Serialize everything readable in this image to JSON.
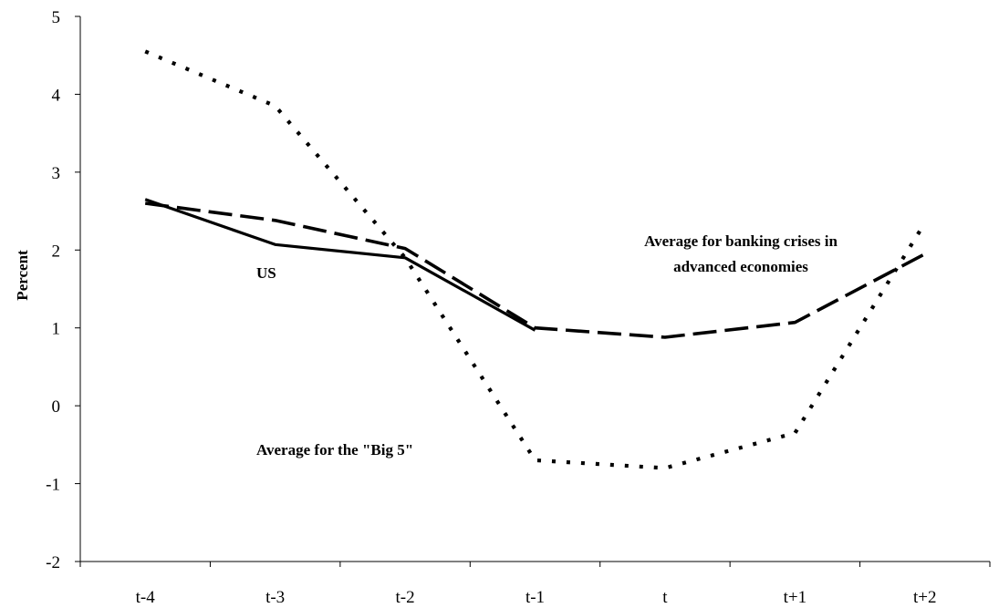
{
  "chart_data": {
    "type": "line",
    "title": "",
    "xlabel": "",
    "ylabel": "Percent",
    "ylim": [
      -2,
      5
    ],
    "yticks": [
      -2,
      -1,
      0,
      1,
      2,
      3,
      4,
      5
    ],
    "ytick_labels": [
      "-2",
      "-1",
      "0",
      "1",
      "2",
      "3",
      "4",
      "5"
    ],
    "categories": [
      "t-4",
      "t-3",
      "t-2",
      "t-1",
      "t",
      "t+1",
      "t+2"
    ],
    "grid": false,
    "legend": "none",
    "series": [
      {
        "name": "US",
        "style": "solid",
        "values": [
          2.65,
          2.07,
          1.9,
          0.97,
          null,
          null,
          null
        ]
      },
      {
        "name": "Average for banking crises in advanced economies",
        "style": "dashed",
        "values": [
          2.6,
          2.38,
          2.02,
          1.0,
          0.88,
          1.07,
          1.95
        ]
      },
      {
        "name": "Average for the \"Big 5\"",
        "style": "dotted",
        "values": [
          4.55,
          3.85,
          1.9,
          -0.7,
          -0.8,
          -0.35,
          2.35
        ]
      }
    ],
    "annotations": {
      "us": "US",
      "advanced_line1": "Average for banking crises in",
      "advanced_line2": "advanced economies",
      "big5": "Average for the \"Big 5\""
    }
  }
}
